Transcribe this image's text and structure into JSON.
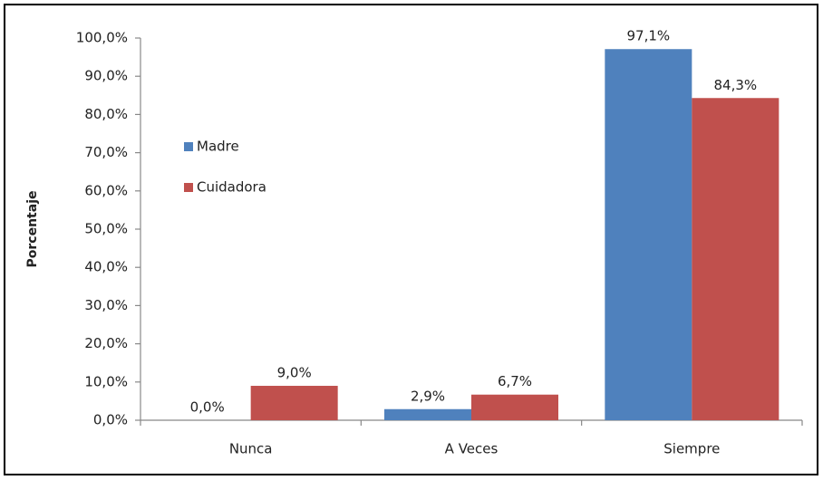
{
  "chart_data": {
    "type": "bar",
    "y_label": "Porcentaje",
    "categories": [
      "Nunca",
      "A Veces",
      "Siempre"
    ],
    "series": [
      {
        "name": "Madre",
        "color": "#4f81bd",
        "values": [
          0,
          2.9,
          97.1
        ],
        "value_labels": [
          "0,0%",
          "2,9%",
          "97,1%"
        ]
      },
      {
        "name": "Cuidadora",
        "color": "#c0504d",
        "values": [
          9.0,
          6.7,
          84.3
        ],
        "value_labels": [
          "9,0%",
          "6,7%",
          "84,3%"
        ]
      }
    ],
    "ylim": [
      0,
      100
    ],
    "yticks": [
      {
        "value": 0,
        "label": "0,0%"
      },
      {
        "value": 10,
        "label": "10,0%"
      },
      {
        "value": 20,
        "label": "20,0%"
      },
      {
        "value": 30,
        "label": "30,0%"
      },
      {
        "value": 40,
        "label": "40,0%"
      },
      {
        "value": 50,
        "label": "50,0%"
      },
      {
        "value": 60,
        "label": "60,0%"
      },
      {
        "value": 70,
        "label": "70,0%"
      },
      {
        "value": 80,
        "label": "80,0%"
      },
      {
        "value": 90,
        "label": "90,0%"
      },
      {
        "value": 100,
        "label": "100,0%"
      }
    ],
    "grid": false,
    "legend": "left"
  }
}
